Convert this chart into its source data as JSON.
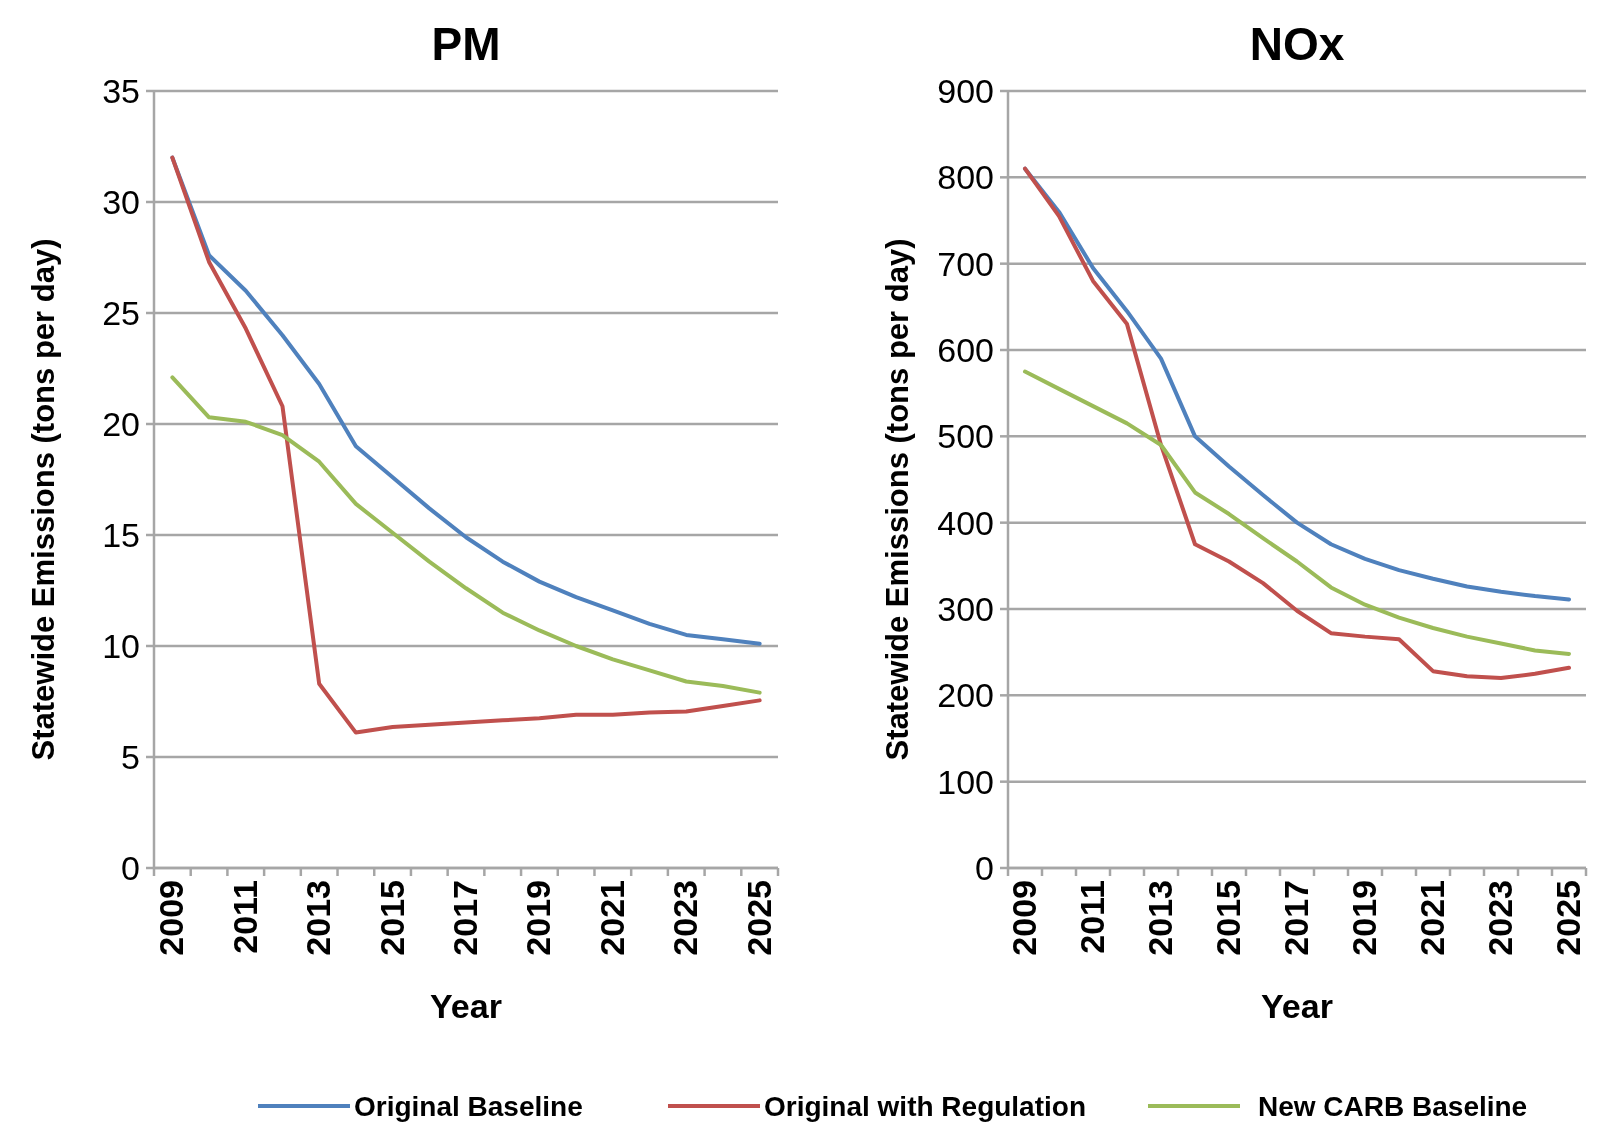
{
  "chart_data": [
    {
      "type": "line",
      "title": "PM",
      "xlabel": "Year",
      "ylabel": "Statewide Emissions (tons per day)",
      "categories": [
        "2009",
        null,
        "2011",
        null,
        "2013",
        null,
        "2015",
        null,
        "2017",
        null,
        "2019",
        null,
        "2021",
        null,
        "2023",
        null,
        "2025"
      ],
      "ylim": [
        0,
        35
      ],
      "yticks": [
        0,
        5,
        10,
        15,
        20,
        25,
        30,
        35
      ],
      "grid": "y",
      "legend": "bottom",
      "series": [
        {
          "name": "Original Baseline",
          "color": "#4f81bd",
          "values": [
            32,
            27.6,
            26,
            24,
            21.8,
            19,
            17.6,
            16.2,
            14.9,
            13.8,
            12.9,
            12.2,
            11.6,
            11,
            10.5,
            10.3,
            10.1
          ]
        },
        {
          "name": "Original with Regulation",
          "color": "#c0504d",
          "values": [
            32,
            27.3,
            24.3,
            20.8,
            8.3,
            6.1,
            6.35,
            6.45,
            6.55,
            6.65,
            6.75,
            6.9,
            6.9,
            7,
            7.05,
            7.3,
            7.55
          ]
        },
        {
          "name": "New CARB Baseline",
          "color": "#9bbb59",
          "values": [
            22.1,
            20.3,
            20.1,
            19.5,
            18.3,
            16.4,
            15.1,
            13.8,
            12.6,
            11.5,
            10.7,
            10,
            9.4,
            8.9,
            8.4,
            8.2,
            7.9
          ]
        }
      ]
    },
    {
      "type": "line",
      "title": "NOx",
      "xlabel": "Year",
      "ylabel": "Statewide Emissions (tons per day)",
      "categories": [
        "2009",
        null,
        "2011",
        null,
        "2013",
        null,
        "2015",
        null,
        "2017",
        null,
        "2019",
        null,
        "2021",
        null,
        "2023",
        null,
        "2025"
      ],
      "ylim": [
        0,
        900
      ],
      "yticks": [
        0,
        100,
        200,
        300,
        400,
        500,
        600,
        700,
        800,
        900
      ],
      "grid": "y",
      "series": [
        {
          "color": "#4f81bd",
          "values": [
            810,
            760,
            695,
            645,
            590,
            500,
            465,
            432,
            400,
            375,
            358,
            345,
            335,
            326,
            320,
            315,
            311
          ]
        },
        {
          "color": "#c0504d",
          "values": [
            810,
            755,
            680,
            630,
            490,
            375,
            355,
            330,
            298,
            272,
            268,
            265,
            228,
            222,
            220,
            225,
            232
          ]
        },
        {
          "color": "#9bbb59",
          "values": [
            575,
            555,
            535,
            515,
            490,
            435,
            410,
            382,
            355,
            325,
            305,
            290,
            278,
            268,
            260,
            252,
            248
          ]
        }
      ]
    }
  ]
}
